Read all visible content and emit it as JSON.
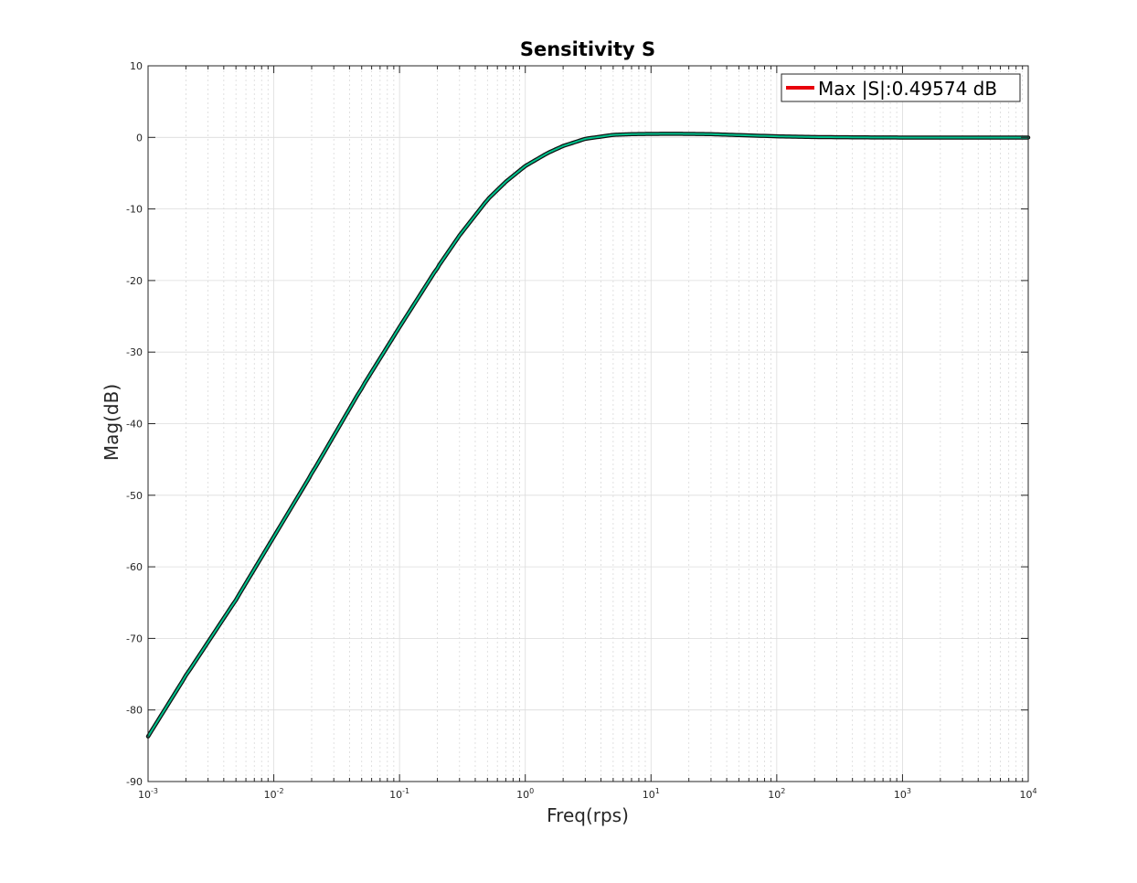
{
  "chart_data": {
    "type": "line",
    "title": "Sensitivity S",
    "xlabel": "Freq(rps)",
    "ylabel": "Mag(dB)",
    "xscale": "log",
    "xlim": [
      0.001,
      10000
    ],
    "ylim": [
      -90,
      10
    ],
    "grid": true,
    "legend_position": "top-right",
    "x_ticks": [
      {
        "base": "10",
        "exp": "-3"
      },
      {
        "base": "10",
        "exp": "-2"
      },
      {
        "base": "10",
        "exp": "-1"
      },
      {
        "base": "10",
        "exp": "0"
      },
      {
        "base": "10",
        "exp": "1"
      },
      {
        "base": "10",
        "exp": "2"
      },
      {
        "base": "10",
        "exp": "3"
      },
      {
        "base": "10",
        "exp": "4"
      }
    ],
    "y_ticks": [
      "10",
      "0",
      "-10",
      "-20",
      "-30",
      "-40",
      "-50",
      "-60",
      "-70",
      "-80",
      "-90"
    ],
    "series": [
      {
        "name": "Max |S|:0.49574 dB",
        "legend_color": "#e8000b",
        "line_color": "#00c08b",
        "outline_color": "#111111",
        "x": [
          0.001,
          0.002,
          0.005,
          0.01,
          0.02,
          0.05,
          0.1,
          0.2,
          0.3,
          0.5,
          0.7,
          1,
          1.5,
          2,
          3,
          5,
          7,
          10,
          15,
          20,
          30,
          50,
          100,
          200,
          500,
          1000,
          10000
        ],
        "y": [
          -83.7,
          -75.2,
          -64.6,
          -55.8,
          -47.0,
          -35.0,
          -26.5,
          -18.2,
          -13.7,
          -8.7,
          -6.2,
          -4.0,
          -2.2,
          -1.2,
          -0.2,
          0.35,
          0.45,
          0.49,
          0.5,
          0.49,
          0.45,
          0.32,
          0.15,
          0.05,
          0.0,
          -0.02,
          -0.02
        ]
      }
    ]
  }
}
